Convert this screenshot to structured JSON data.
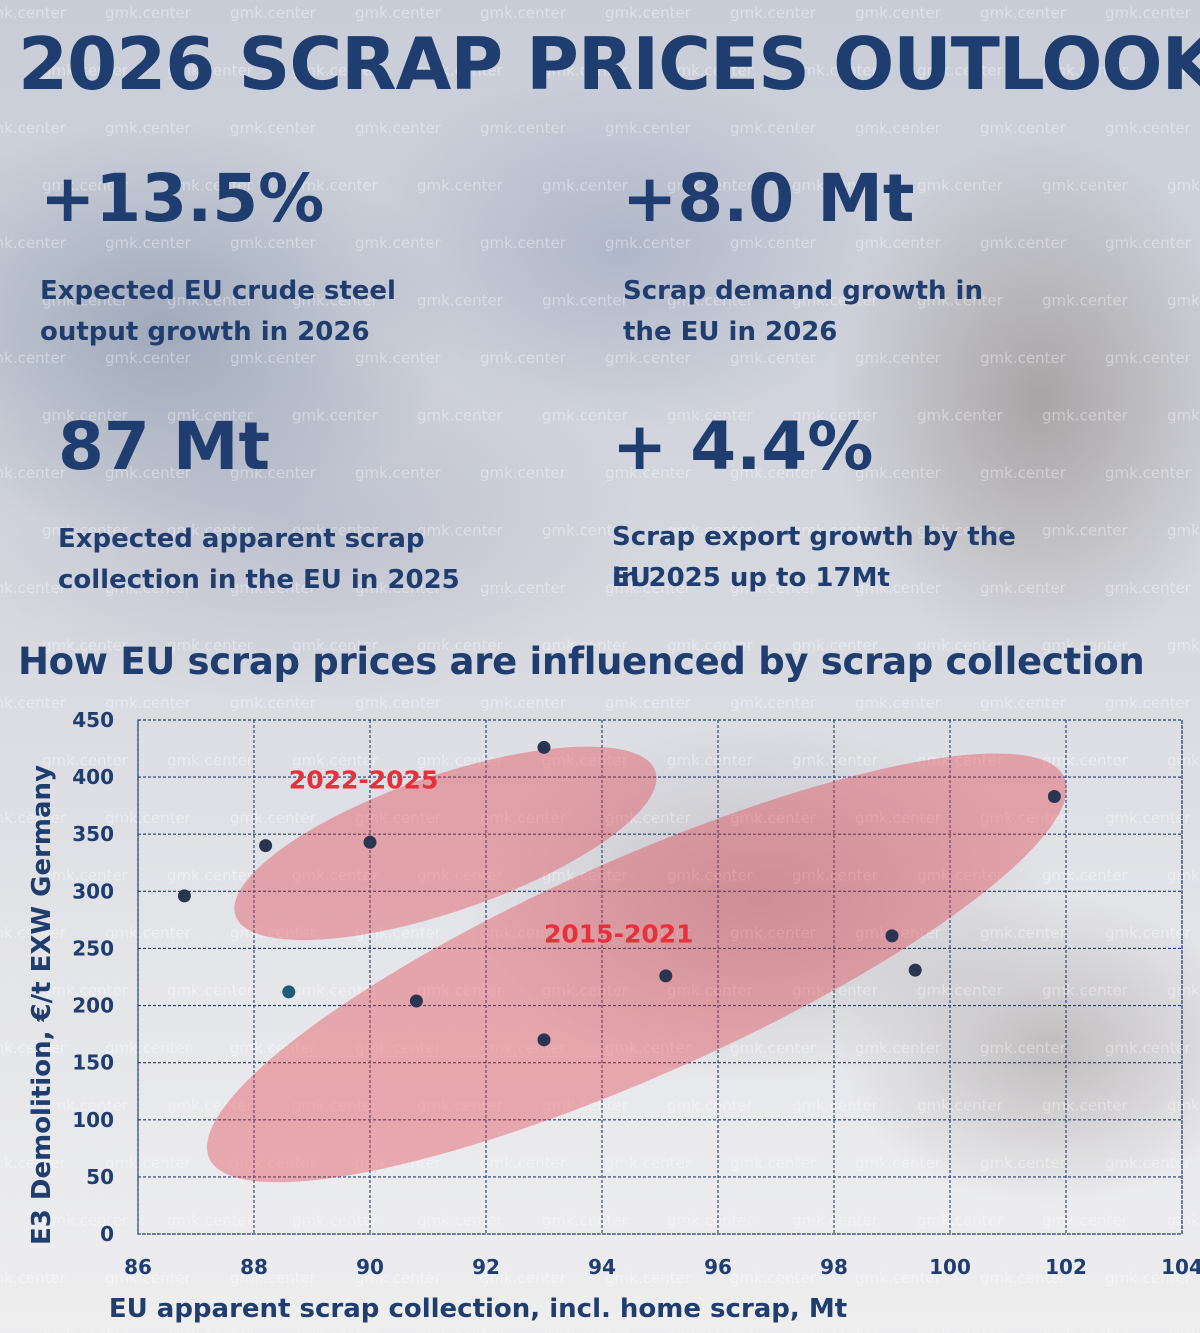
{
  "title": "2026 SCRAP PRICES OUTLOOK",
  "watermark": "gmk.center",
  "stats": [
    {
      "value": "+13.5%",
      "description_lines": [
        "Expected EU crude steel",
        "output growth in 2026"
      ]
    },
    {
      "value": "+8.0 Mt",
      "description_lines": [
        "Scrap demand growth in",
        "the EU in 2026"
      ]
    },
    {
      "value": "87 Mt",
      "description_lines": [
        "Expected apparent scrap",
        "collection in the EU in 2025"
      ]
    },
    {
      "value": "+ 4.4%",
      "description_lines": [
        "Scrap export growth by the EU",
        "in 2025 up to 17Mt"
      ]
    }
  ],
  "colors": {
    "primary": "#1f3d6f",
    "annotation": "#e8303a",
    "ellipse_fill": "#e23a48",
    "point": "#2a3552",
    "point_highlight": "#1e5d78"
  },
  "chart_data": {
    "type": "scatter",
    "title": "How EU scrap prices are influenced by scrap collection",
    "xlabel": "EU apparent scrap collection, incl. home scrap, Mt",
    "ylabel": "E3 Demolition, €/t EXW Germany",
    "xlim": [
      86,
      104
    ],
    "ylim": [
      0,
      450
    ],
    "xticks": [
      86,
      88,
      90,
      92,
      94,
      96,
      98,
      100,
      102,
      104
    ],
    "yticks": [
      0,
      50,
      100,
      150,
      200,
      250,
      300,
      350,
      400,
      450
    ],
    "grid": true,
    "points": [
      {
        "x": 86.8,
        "y": 296
      },
      {
        "x": 88.2,
        "y": 340
      },
      {
        "x": 90.0,
        "y": 343
      },
      {
        "x": 93.0,
        "y": 426
      },
      {
        "x": 101.8,
        "y": 383
      },
      {
        "x": 88.6,
        "y": 212
      },
      {
        "x": 90.8,
        "y": 204
      },
      {
        "x": 93.0,
        "y": 170
      },
      {
        "x": 95.1,
        "y": 226
      },
      {
        "x": 99.0,
        "y": 261
      },
      {
        "x": 99.4,
        "y": 231
      }
    ],
    "groups": [
      {
        "label": "2022-2025",
        "members": [
          0,
          1,
          2,
          3
        ]
      },
      {
        "label": "2015-2021",
        "members": [
          4,
          6,
          7,
          8,
          9,
          10
        ]
      }
    ]
  }
}
